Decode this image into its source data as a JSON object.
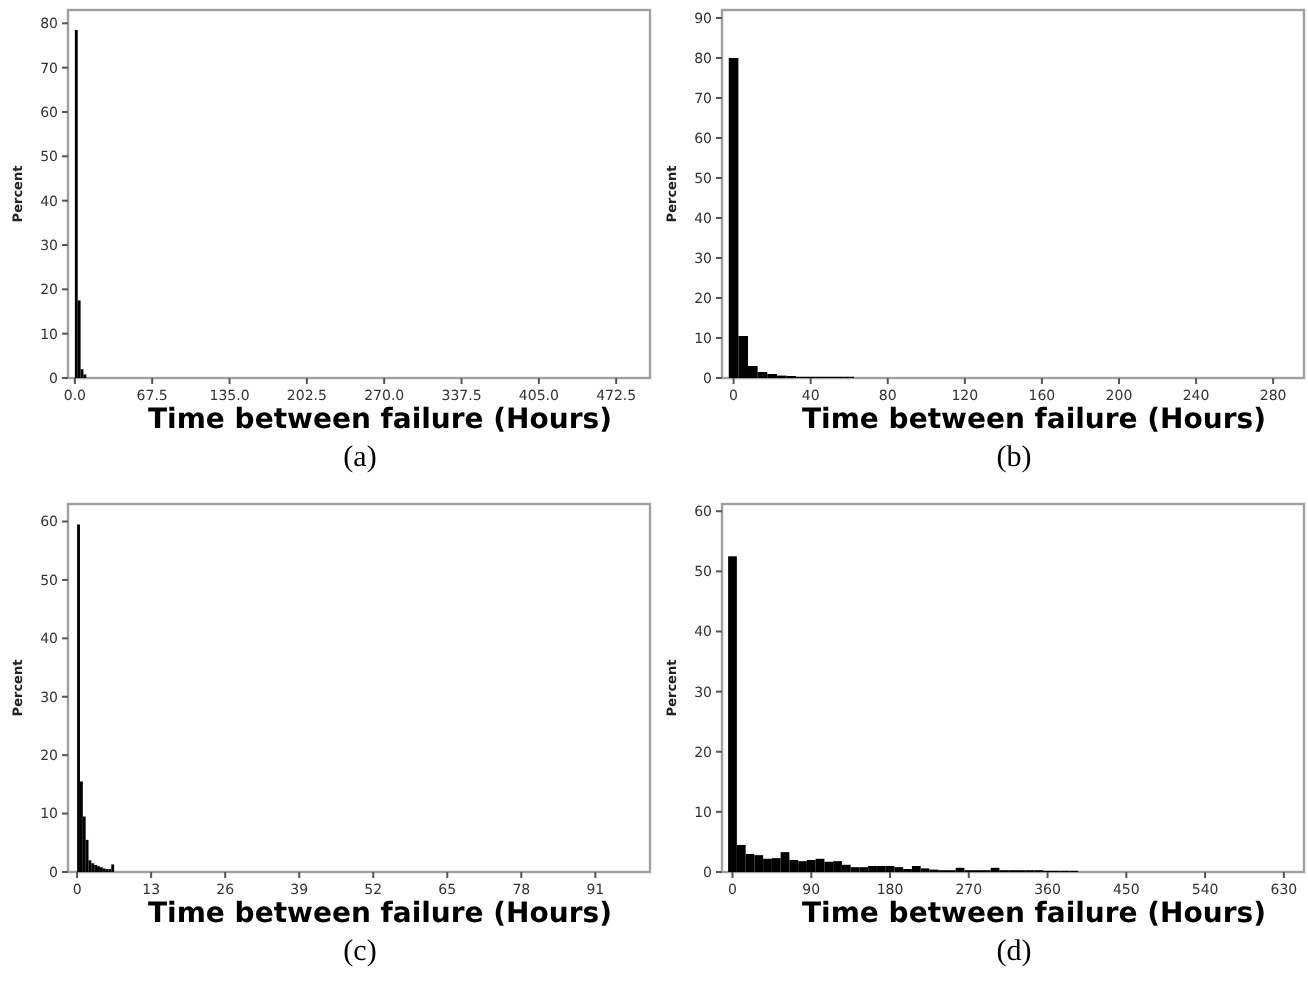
{
  "chart_data": [
    {
      "type": "histogram",
      "xlabel": "Time between failure (Hours)",
      "ylabel": "Percent",
      "color": "#000000",
      "bins": [
        0,
        2.5,
        5,
        7.5,
        10
      ],
      "values": [
        78.5,
        17.5,
        2,
        0.8
      ],
      "xlim": [
        -6,
        502
      ],
      "xticks": [
        {
          "value": 0,
          "label": "0.0"
        },
        67.5,
        {
          "value": 135,
          "label": "135.0"
        },
        202.5,
        {
          "value": 270,
          "label": "270.0"
        },
        337.5,
        {
          "value": 405,
          "label": "405.0"
        },
        472.5
      ],
      "ylim": [
        0,
        83
      ],
      "yticks": [
        0,
        10,
        20,
        30,
        40,
        50,
        60,
        70,
        80
      ],
      "annotations": [
        "(a)"
      ]
    },
    {
      "type": "histogram",
      "xlabel": "Time between failure (Hours)",
      "ylabel": "Percent",
      "color": "#000000",
      "bins": [
        -2.5,
        2.5,
        7.5,
        12.5,
        17.5,
        22.5,
        27.5,
        32.5,
        37.5,
        42.5,
        47.5,
        52.5,
        57.5,
        62.5
      ],
      "values": [
        80,
        10.5,
        3,
        1.5,
        1,
        0.6,
        0.5,
        0.3,
        0.3,
        0.3,
        0.3,
        0.3,
        0.3
      ],
      "xlim": [
        -6,
        296
      ],
      "xticks": [
        0,
        40,
        80,
        120,
        160,
        200,
        240,
        280
      ],
      "ylim": [
        0,
        92
      ],
      "yticks": [
        0,
        10,
        20,
        30,
        40,
        50,
        60,
        70,
        80,
        90
      ],
      "annotations": [
        "(b)"
      ]
    },
    {
      "type": "histogram",
      "xlabel": "Time between failure (Hours)",
      "ylabel": "Percent",
      "color": "#000000",
      "bins": [
        0,
        0.5,
        1,
        1.5,
        2,
        2.5,
        3,
        3.5,
        4,
        4.5,
        5,
        5.5,
        6,
        6.5
      ],
      "values": [
        59.5,
        15.5,
        9.5,
        5.5,
        2,
        1.5,
        1.2,
        1,
        0.8,
        0.6,
        0.5,
        0.5,
        1.3
      ],
      "xlim": [
        -1.6,
        100.6
      ],
      "xticks": [
        0,
        13,
        26,
        39,
        52,
        65,
        78,
        91
      ],
      "ylim": [
        0,
        63
      ],
      "yticks": [
        0,
        10,
        20,
        30,
        40,
        50,
        60
      ],
      "annotations": [
        "(c)"
      ]
    },
    {
      "type": "histogram",
      "xlabel": "Time between failure (Hours)",
      "ylabel": "Percent",
      "color": "#000000",
      "bins": [
        -5,
        5,
        15,
        25,
        35,
        45,
        55,
        65,
        75,
        85,
        95,
        105,
        115,
        125,
        135,
        145,
        155,
        165,
        175,
        185,
        195,
        205,
        215,
        225,
        235,
        245,
        255,
        265,
        275,
        285,
        295,
        305,
        315,
        325,
        335,
        345,
        355,
        365,
        375,
        385,
        395
      ],
      "values": [
        52.5,
        4.5,
        3,
        2.8,
        2.2,
        2.3,
        3.3,
        2,
        1.8,
        2,
        2.2,
        1.7,
        1.8,
        1.2,
        0.8,
        0.8,
        1,
        1,
        1,
        0.8,
        0.5,
        1,
        0.6,
        0.4,
        0.3,
        0.3,
        0.7,
        0.3,
        0.3,
        0.3,
        0.7,
        0.3,
        0.3,
        0.3,
        0.3,
        0.3,
        0.2,
        0.2,
        0.2,
        0.2
      ],
      "xlim": [
        -12,
        653
      ],
      "xticks": [
        0,
        90,
        180,
        270,
        360,
        450,
        540,
        630
      ],
      "ylim": [
        0,
        61.2
      ],
      "yticks": [
        0,
        10,
        20,
        30,
        40,
        50,
        60
      ],
      "annotations": [
        "(d)"
      ]
    }
  ]
}
